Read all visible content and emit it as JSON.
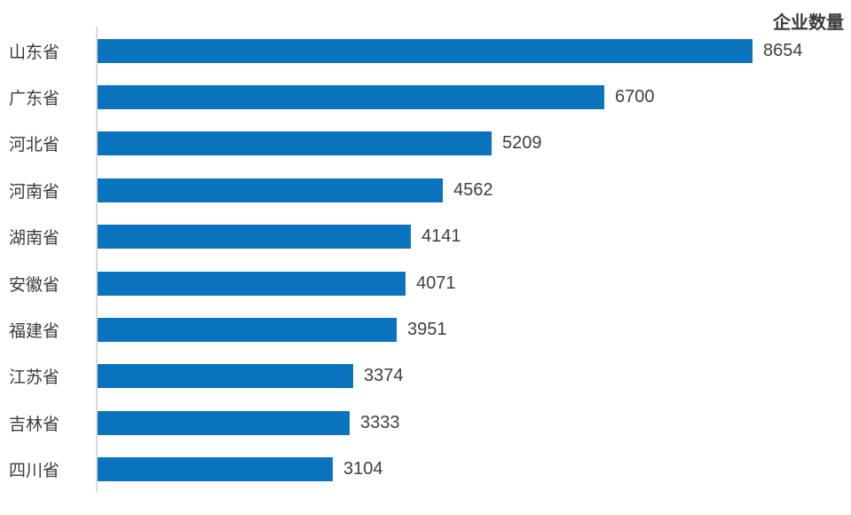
{
  "chart_data": {
    "type": "bar",
    "orientation": "horizontal",
    "title": "企业数量",
    "categories": [
      "山东省",
      "广东省",
      "河北省",
      "河南省",
      "湖南省",
      "安徽省",
      "福建省",
      "江苏省",
      "吉林省",
      "四川省"
    ],
    "values": [
      8654,
      6700,
      5209,
      4562,
      4141,
      4071,
      3951,
      3374,
      3333,
      3104
    ],
    "xlabel": "",
    "ylabel": "",
    "xlim": [
      0,
      8654
    ],
    "grid": false,
    "data_labels": true,
    "legend_position": "top-right",
    "bar_color": "#0a73be",
    "axis_line_color": "#d9d9d9",
    "category_label_color": "#3b3b3b",
    "value_label_color": "#3f3f3f",
    "title_color": "#3a3a3a",
    "background_color": "#ffffff"
  }
}
